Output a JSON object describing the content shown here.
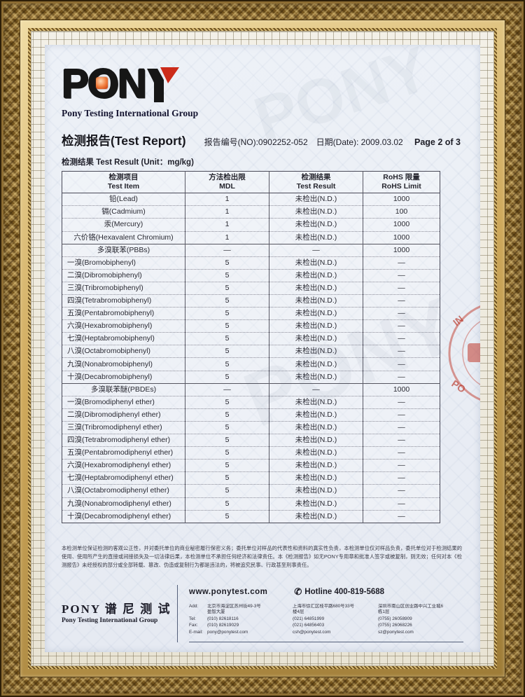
{
  "logo": {
    "letters": [
      "P",
      "O",
      "N"
    ],
    "word": "PONY",
    "subtitle": "Pony Testing International Group"
  },
  "header": {
    "title": "检测报告(Test Report)",
    "report_no": "报告编号(NO):0902252-052",
    "date": "日期(Date): 2009.03.02",
    "page": "Page 2 of 3",
    "result_label": "检测结果 Test Result",
    "unit": "(Unit：mg/kg)"
  },
  "table": {
    "headers": [
      {
        "cn": "检测项目",
        "en": "Test Item"
      },
      {
        "cn": "方法检出限",
        "en": "MDL"
      },
      {
        "cn": "检测结果",
        "en": "Test Result"
      },
      {
        "cn": "RoHS 限量",
        "en": "RoHS Limit"
      }
    ],
    "rows": [
      {
        "item": "铅(Lead)",
        "mdl": "1",
        "result": "未检出(N.D.)",
        "limit": "1000",
        "style": "center"
      },
      {
        "item": "镉(Cadmium)",
        "mdl": "1",
        "result": "未检出(N.D.)",
        "limit": "100",
        "style": "center"
      },
      {
        "item": "汞(Mercury)",
        "mdl": "1",
        "result": "未检出(N.D.)",
        "limit": "1000",
        "style": "center"
      },
      {
        "item": "六价铬(Hexavalent Chromium)",
        "mdl": "1",
        "result": "未检出(N.D.)",
        "limit": "1000",
        "style": "center"
      },
      {
        "item": "多溴联苯(PBBs)",
        "mdl": "—",
        "result": "—",
        "limit": "1000",
        "style": "group"
      },
      {
        "item": "一溴(Bromobiphenyl)",
        "mdl": "5",
        "result": "未检出(N.D.)",
        "limit": "—",
        "style": "sub"
      },
      {
        "item": "二溴(Dibromobiphenyl)",
        "mdl": "5",
        "result": "未检出(N.D.)",
        "limit": "—",
        "style": "sub"
      },
      {
        "item": "三溴(Tribromobiphenyl)",
        "mdl": "5",
        "result": "未检出(N.D.)",
        "limit": "—",
        "style": "sub"
      },
      {
        "item": "四溴(Tetrabromobiphenyl)",
        "mdl": "5",
        "result": "未检出(N.D.)",
        "limit": "—",
        "style": "sub"
      },
      {
        "item": "五溴(Pentabromobiphenyl)",
        "mdl": "5",
        "result": "未检出(N.D.)",
        "limit": "—",
        "style": "sub"
      },
      {
        "item": "六溴(Hexabromobiphenyl)",
        "mdl": "5",
        "result": "未检出(N.D.)",
        "limit": "—",
        "style": "sub"
      },
      {
        "item": "七溴(Heptabromobiphenyl)",
        "mdl": "5",
        "result": "未检出(N.D.)",
        "limit": "—",
        "style": "sub"
      },
      {
        "item": "八溴(Octabromobiphenyl)",
        "mdl": "5",
        "result": "未检出(N.D.)",
        "limit": "—",
        "style": "sub"
      },
      {
        "item": "九溴(Nonabromobiphenyl)",
        "mdl": "5",
        "result": "未检出(N.D.)",
        "limit": "—",
        "style": "sub"
      },
      {
        "item": "十溴(Decabromobiphenyl)",
        "mdl": "5",
        "result": "未检出(N.D.)",
        "limit": "—",
        "style": "sub"
      },
      {
        "item": "多溴联苯醚(PBDEs)",
        "mdl": "—",
        "result": "—",
        "limit": "1000",
        "style": "group"
      },
      {
        "item": "一溴(Bromodiphenyl ether)",
        "mdl": "5",
        "result": "未检出(N.D.)",
        "limit": "—",
        "style": "sub"
      },
      {
        "item": "二溴(Dibromodiphenyl ether)",
        "mdl": "5",
        "result": "未检出(N.D.)",
        "limit": "—",
        "style": "sub"
      },
      {
        "item": "三溴(Tribromodiphenyl ether)",
        "mdl": "5",
        "result": "未检出(N.D.)",
        "limit": "—",
        "style": "sub"
      },
      {
        "item": "四溴(Tetrabromodiphenyl ether)",
        "mdl": "5",
        "result": "未检出(N.D.)",
        "limit": "—",
        "style": "sub"
      },
      {
        "item": "五溴(Pentabromodiphenyl ether)",
        "mdl": "5",
        "result": "未检出(N.D.)",
        "limit": "—",
        "style": "sub"
      },
      {
        "item": "六溴(Hexabromodiphenyl ether)",
        "mdl": "5",
        "result": "未检出(N.D.)",
        "limit": "—",
        "style": "sub"
      },
      {
        "item": "七溴(Heptabromodiphenyl ether)",
        "mdl": "5",
        "result": "未检出(N.D.)",
        "limit": "—",
        "style": "sub"
      },
      {
        "item": "八溴(Octabromodiphenyl ether)",
        "mdl": "5",
        "result": "未检出(N.D.)",
        "limit": "—",
        "style": "sub"
      },
      {
        "item": "九溴(Nonabromodiphenyl ether)",
        "mdl": "5",
        "result": "未检出(N.D.)",
        "limit": "—",
        "style": "sub"
      },
      {
        "item": "十溴(Decabromodiphenyl ether)",
        "mdl": "5",
        "result": "未检出(N.D.)",
        "limit": "—",
        "style": "sub"
      }
    ]
  },
  "stamp": {
    "letters_top": "IN",
    "letters_bottom": "PO"
  },
  "disclaimer": "本检测单位保证检测的客观公正性，并对委托单位的商业秘密履行保密义务；委托单位对样品的代表性和资料的真实性负责，本检测单位仅对样品负责，委托单位对于检测结果的使用、使用所产生的直接或间接损失及一切法律后果，本检测单位不承担任何经济和法律责任。本《检测报告》如无PONY专用章和批准人签字或被复制，则无效；任何对本《检测报告》未经授权的部分或全部转载、篡改、伪造或复制行为都是违法的，将被追究民事、行政甚至刑事责任。",
  "footer": {
    "logo_cn": "PONY 谱 尼 测 试",
    "logo_en": "Pony Testing International Group",
    "website": "www.ponytest.com",
    "hotline": "Hotline 400-819-5688",
    "phone_icon": "✆",
    "labels": {
      "add": "Add:",
      "tel": "Tel:",
      "fax": "Fax:",
      "email": "E-mail:"
    },
    "offices": [
      {
        "address1": "北京市海淀区苏州街49-3号",
        "address2": "盈智大厦",
        "tel": "(010) 82618116",
        "fax": "(010) 82619029",
        "email": "pony@ponytest.com"
      },
      {
        "address1": "上海市徐汇区桂平路680号33号",
        "address2": "楼4层",
        "tel": "(021) 64851999",
        "fax": "(021) 64856403",
        "email": "csh@ponytest.com"
      },
      {
        "address1": "深圳市南山区创业路中兴工业城6",
        "address2": "栋1层",
        "tel": "(0755) 26058909",
        "fax": "(0755) 26068226",
        "email": "sz@ponytest.com"
      }
    ]
  },
  "colors": {
    "logo_red": "#cc2b1a",
    "logo_orange": "#ef7a3a",
    "stamp_red": "#c0392b",
    "paper_blue": "#edf1f7",
    "frame_gold": "#97763a"
  }
}
